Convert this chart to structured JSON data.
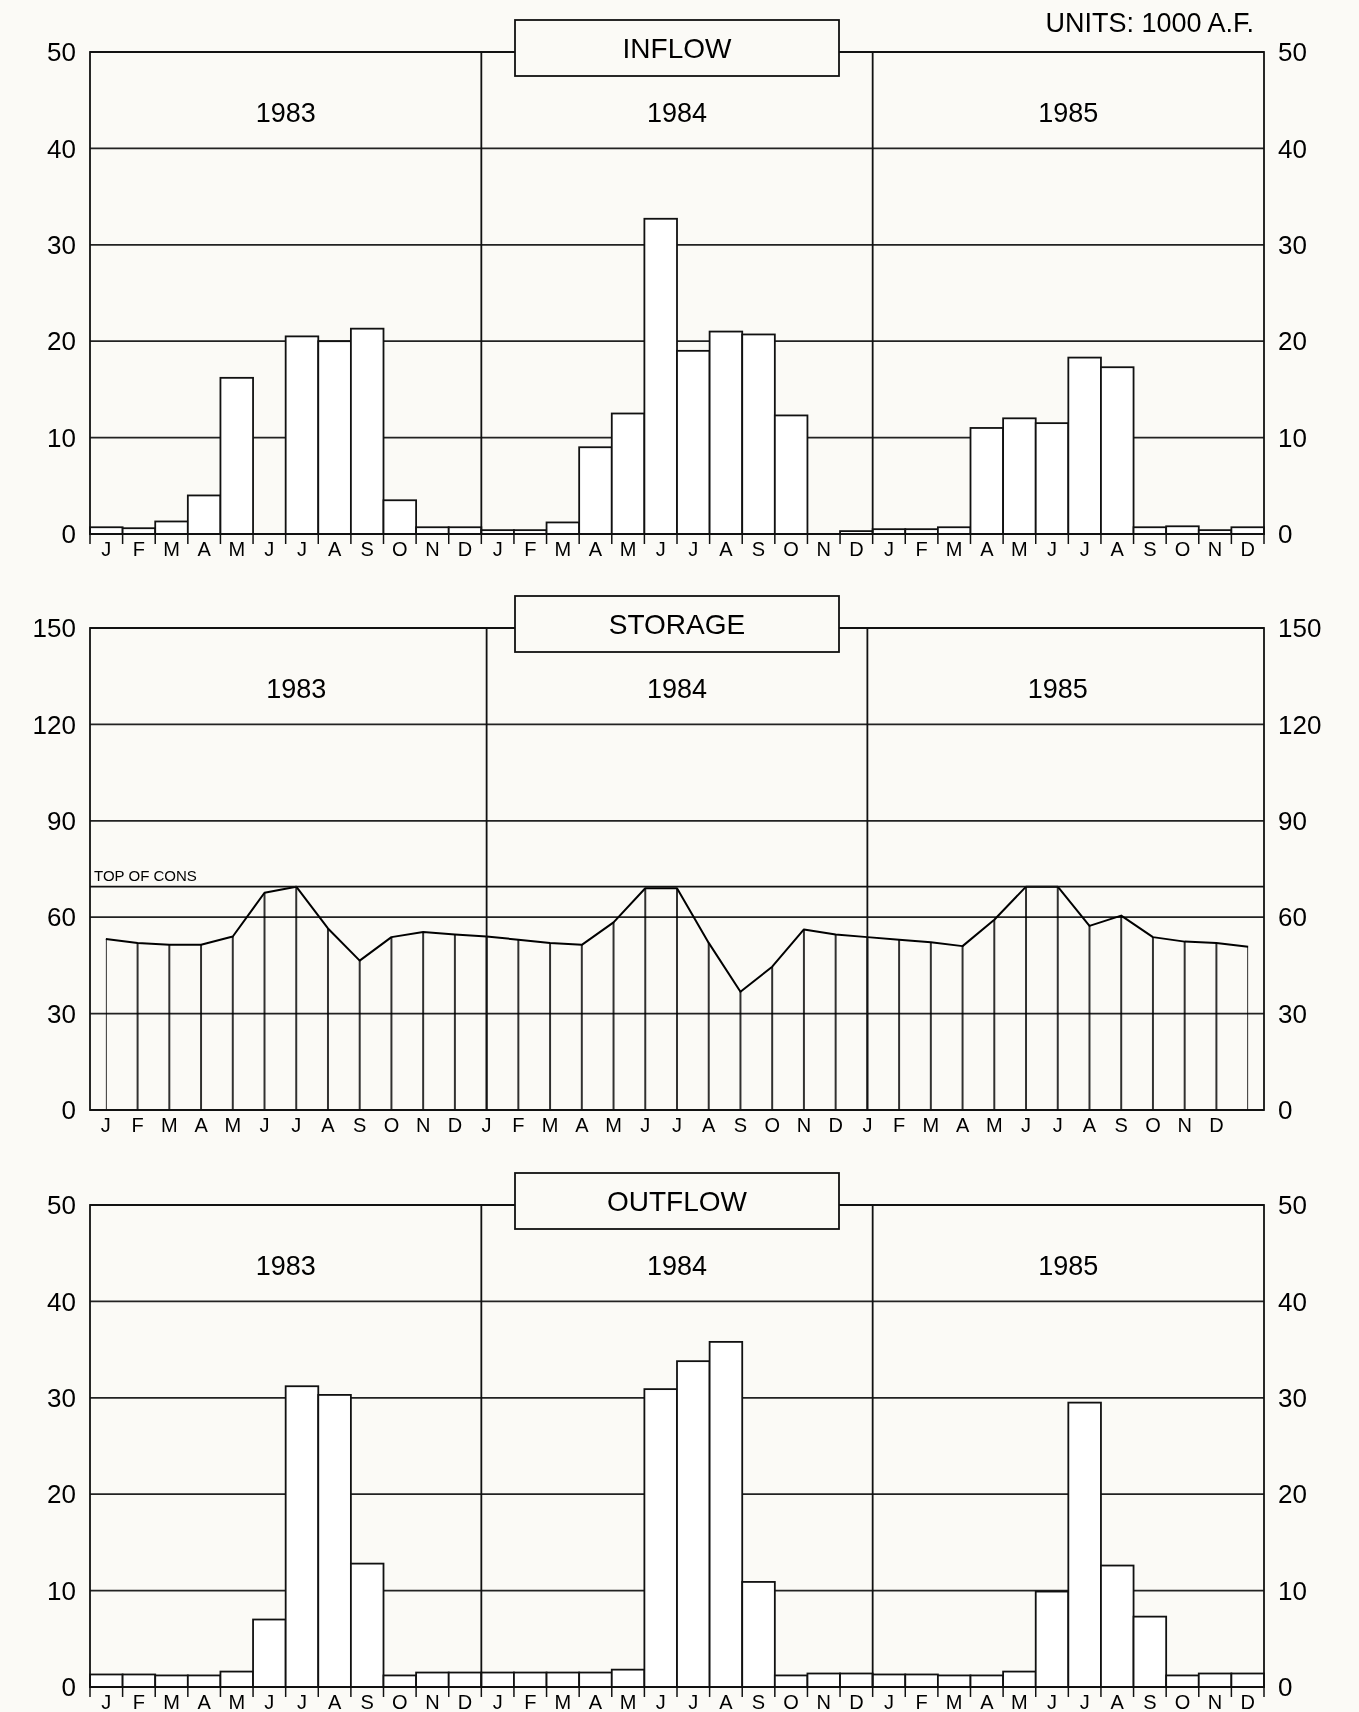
{
  "chart_data": [
    {
      "type": "bar",
      "title": "INFLOW",
      "subtitle": "UNITS: 1000 A.F.",
      "annotations": [
        "1983",
        "1984",
        "1985"
      ],
      "categories": [
        "J",
        "F",
        "M",
        "A",
        "M",
        "J",
        "J",
        "A",
        "S",
        "O",
        "N",
        "D",
        "J",
        "F",
        "M",
        "A",
        "M",
        "J",
        "J",
        "A",
        "S",
        "O",
        "N",
        "D",
        "J",
        "F",
        "M",
        "A",
        "M",
        "J",
        "J",
        "A",
        "S",
        "O",
        "N",
        "D"
      ],
      "values": [
        0.7,
        0.6,
        1.3,
        4,
        16.2,
        0,
        20.5,
        20,
        21.3,
        3.5,
        0.7,
        0.7,
        0.4,
        0.4,
        1.2,
        9,
        12.5,
        32.7,
        19,
        21,
        20.7,
        12.3,
        0,
        0.3,
        0.5,
        0.5,
        0.7,
        11,
        12,
        11.5,
        18.3,
        17.3,
        0.7,
        0.8,
        0.4,
        0.7
      ],
      "color": "#ffffff",
      "ylim": [
        0,
        50
      ],
      "yticks": [
        0,
        10,
        20,
        30,
        40,
        50
      ],
      "y2lim": [
        0,
        50
      ],
      "y2ticks": [
        0,
        10,
        20,
        30,
        40,
        50
      ],
      "grid": "y"
    },
    {
      "type": "area",
      "title": "STORAGE",
      "annotations": [
        "1983",
        "1984",
        "1985"
      ],
      "categories": [
        "J",
        "F",
        "M",
        "A",
        "M",
        "J",
        "J",
        "A",
        "S",
        "O",
        "N",
        "D",
        "J",
        "F",
        "M",
        "A",
        "M",
        "J",
        "J",
        "A",
        "S",
        "O",
        "N",
        "D",
        "J",
        "F",
        "M",
        "A",
        "M",
        "J",
        "J",
        "A",
        "S",
        "O",
        "N",
        "D",
        null
      ],
      "values": [
        53.2,
        52,
        51.4,
        51.4,
        54,
        67.6,
        69.5,
        56.5,
        46.5,
        53.8,
        55.4,
        54.6,
        54,
        53,
        52,
        51.4,
        58.4,
        69,
        69,
        52,
        36.8,
        44.6,
        56.2,
        54.6,
        53.8,
        53,
        52.2,
        51,
        59.2,
        69.5,
        69.5,
        57.3,
        60.5,
        53.8,
        52.4,
        52,
        50.8
      ],
      "color": "#000000",
      "line_style": "solid",
      "ylim": [
        0,
        150
      ],
      "yticks": [
        0,
        30,
        60,
        90,
        120,
        150
      ],
      "y2lim": [
        0,
        150
      ],
      "y2ticks": [
        0,
        30,
        60,
        90,
        120,
        150
      ],
      "grid": true,
      "ref_lines": [
        {
          "axis": "y",
          "value": 69.5,
          "label": "TOP OF CONS"
        }
      ]
    },
    {
      "type": "bar",
      "title": "OUTFLOW",
      "annotations": [
        "1983",
        "1984",
        "1985"
      ],
      "categories": [
        "J",
        "F",
        "M",
        "A",
        "M",
        "J",
        "J",
        "A",
        "S",
        "O",
        "N",
        "D",
        "J",
        "F",
        "M",
        "A",
        "M",
        "J",
        "J",
        "A",
        "S",
        "O",
        "N",
        "D",
        "J",
        "F",
        "M",
        "A",
        "M",
        "J",
        "J",
        "A",
        "S",
        "O",
        "N",
        "D"
      ],
      "values": [
        1.3,
        1.3,
        1.2,
        1.2,
        1.6,
        7,
        31.2,
        30.3,
        12.8,
        1.2,
        1.5,
        1.5,
        1.5,
        1.5,
        1.5,
        1.5,
        1.8,
        30.9,
        33.8,
        35.8,
        10.9,
        1.2,
        1.4,
        1.4,
        1.3,
        1.3,
        1.2,
        1.2,
        1.6,
        9.9,
        29.5,
        12.6,
        7.3,
        1.2,
        1.4,
        1.4
      ],
      "color": "#ffffff",
      "ylim": [
        0,
        50
      ],
      "yticks": [
        0,
        10,
        20,
        30,
        40,
        50
      ],
      "y2lim": [
        0,
        50
      ],
      "y2ticks": [
        0,
        10,
        20,
        30,
        40,
        50
      ],
      "grid": "y"
    }
  ]
}
